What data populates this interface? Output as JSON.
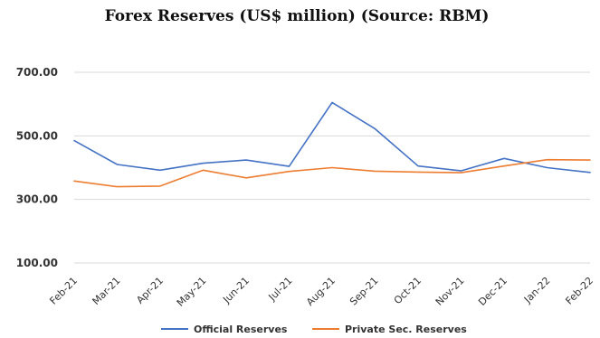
{
  "chart_data": {
    "type": "line",
    "title": "Forex Reserves (US$ million) (Source: RBM)",
    "categories": [
      "Feb-21",
      "Mar-21",
      "Apr-21",
      "May-21",
      "Jun-21",
      "Jul-21",
      "Aug-21",
      "Sep-21",
      "Oct-21",
      "Nov-21",
      "Dec-21",
      "Jan-22",
      "Feb-22"
    ],
    "series": [
      {
        "name": "Official Reserves",
        "color": "#4472c4",
        "values": [
          485,
          410,
          392,
          414,
          424,
          404,
          605,
          522,
          405,
          390,
          429,
          400,
          385
        ]
      },
      {
        "name": "Private Sec. Reserves",
        "color": "#ed7d31",
        "values": [
          358,
          340,
          342,
          392,
          368,
          388,
          400,
          389,
          386,
          384,
          405,
          425,
          424
        ]
      }
    ],
    "yticks": [
      100,
      300,
      500,
      700
    ],
    "ytick_labels": [
      "100.00",
      "300.00",
      "500.00",
      "700.00"
    ],
    "ylim": [
      100,
      700
    ],
    "grid": true,
    "gridline_color": "#d9d9d9",
    "legend_position": "bottom"
  }
}
